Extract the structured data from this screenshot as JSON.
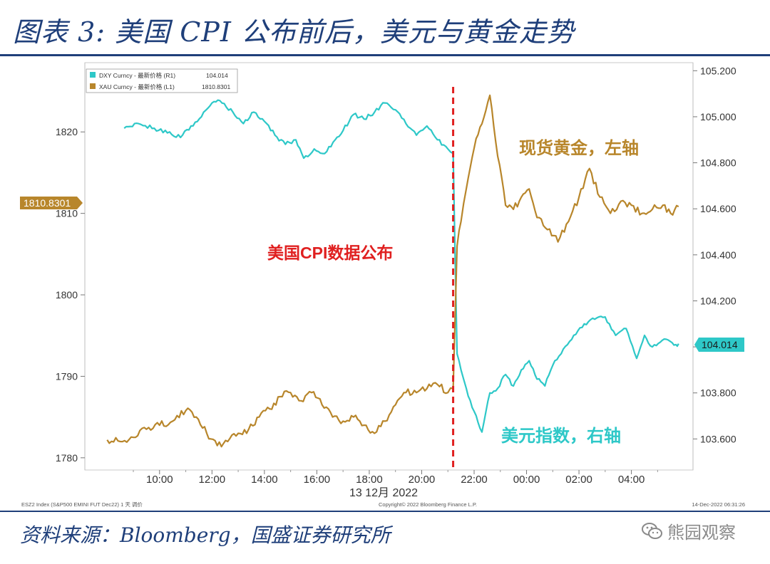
{
  "header": {
    "title": "图表 3: 美国 CPI 公布前后，美元与黄金走势"
  },
  "footer": {
    "source": "资料来源：Bloomberg，国盛证券研究所",
    "watermark": "熊园观察",
    "watermark_icon": "wechat-icon"
  },
  "chart_data": {
    "type": "line",
    "legend": [
      {
        "label": "DXY Curncy - 最新价格 (R1)",
        "value": "104.014",
        "color": "#2ec8c8"
      },
      {
        "label": "XAU Curncy - 最新价格 (L1)",
        "value": "1810.8301",
        "color": "#b8862b"
      }
    ],
    "x_ticks": [
      "10:00",
      "12:00",
      "14:00",
      "16:00",
      "18:00",
      "20:00",
      "22:00",
      "00:00",
      "02:00",
      "04:00"
    ],
    "x_sublabel": "13 12月 2022",
    "left_axis": {
      "ticks": [
        "1780",
        "1790",
        "1800",
        "1810",
        "1820"
      ],
      "range": [
        1778.5,
        1828.5
      ]
    },
    "right_axis": {
      "ticks": [
        "103.600",
        "103.800",
        "104.000",
        "104.200",
        "104.400",
        "104.600",
        "104.800",
        "105.000",
        "105.200"
      ],
      "range": [
        103.465,
        105.235
      ]
    },
    "last_value_labels": {
      "left": "1810.8301",
      "right": "104.014"
    },
    "event_line_time": 21.2,
    "annotations": {
      "event": "美国CPI数据公布",
      "gold": "现货黄金，左轴",
      "usd": "美元指数，右轴"
    },
    "bottom_text": {
      "left": "ESZ2 Index (S&P500 EMINI FUT Dec22) 1 天 调价",
      "center": "Copyright© 2022 Bloomberg Finance L.P.",
      "right": "14-Dec-2022 06:31:26"
    },
    "series": [
      {
        "name": "DXY Curncy",
        "axis": "right",
        "color": "#2ec8c8",
        "x": [
          8.65,
          9.2,
          9.8,
          10.3,
          10.8,
          11.2,
          11.6,
          12.0,
          12.3,
          12.8,
          13.2,
          13.6,
          14.0,
          14.4,
          14.8,
          15.2,
          15.5,
          15.9,
          16.3,
          16.7,
          17.0,
          17.4,
          17.8,
          18.2,
          18.6,
          19.0,
          19.4,
          19.8,
          20.2,
          20.6,
          21.0,
          21.2,
          21.35,
          21.5,
          21.7,
          22.0,
          22.3,
          22.6,
          22.9,
          23.2,
          23.5,
          23.8,
          24.1,
          24.4,
          24.7,
          25.0,
          25.4,
          25.8,
          26.2,
          26.6,
          27.0,
          27.4,
          27.8,
          28.2,
          28.5,
          28.8,
          29.1,
          29.4,
          29.7,
          29.8
        ],
        "values": [
          104.95,
          104.97,
          104.95,
          104.93,
          104.91,
          104.96,
          105.0,
          105.06,
          105.07,
          105.02,
          104.97,
          105.02,
          104.98,
          104.92,
          104.88,
          104.9,
          104.82,
          104.86,
          104.84,
          104.9,
          104.94,
          105.01,
          104.99,
          105.02,
          105.06,
          105.03,
          104.97,
          104.92,
          104.96,
          104.9,
          104.86,
          104.84,
          103.97,
          103.9,
          103.82,
          103.72,
          103.63,
          103.8,
          103.82,
          103.88,
          103.83,
          103.9,
          103.94,
          103.86,
          103.83,
          103.92,
          103.99,
          104.05,
          104.1,
          104.12,
          104.13,
          104.05,
          104.08,
          103.95,
          104.05,
          104.0,
          104.02,
          104.03,
          104.01,
          104.014
        ]
      },
      {
        "name": "XAU Curncy",
        "axis": "left",
        "color": "#b8862b",
        "x": [
          8.0,
          8.5,
          9.0,
          9.5,
          10.0,
          10.5,
          11.0,
          11.4,
          11.8,
          12.2,
          12.6,
          13.0,
          13.4,
          13.8,
          14.2,
          14.6,
          15.0,
          15.4,
          15.8,
          16.2,
          16.6,
          17.0,
          17.4,
          17.8,
          18.2,
          18.6,
          19.0,
          19.4,
          19.8,
          20.2,
          20.6,
          21.0,
          21.2,
          21.35,
          21.5,
          21.7,
          22.0,
          22.3,
          22.6,
          22.9,
          23.2,
          23.5,
          23.8,
          24.1,
          24.4,
          24.8,
          25.2,
          25.6,
          26.0,
          26.4,
          26.8,
          27.2,
          27.6,
          28.0,
          28.4,
          28.8,
          29.2,
          29.5,
          29.8
        ],
        "values": [
          1782.2,
          1782.0,
          1782.5,
          1783.5,
          1784.0,
          1784.5,
          1785.8,
          1785.0,
          1783.0,
          1781.5,
          1782.0,
          1783.0,
          1783.5,
          1785.0,
          1786.0,
          1787.5,
          1788.0,
          1787.0,
          1788.0,
          1786.5,
          1785.0,
          1784.5,
          1785.0,
          1784.0,
          1783.0,
          1784.5,
          1786.5,
          1788.0,
          1788.0,
          1788.5,
          1789.0,
          1788.0,
          1788.5,
          1806.0,
          1809.0,
          1813.0,
          1818.0,
          1821.0,
          1824.5,
          1817.0,
          1811.0,
          1810.5,
          1812.0,
          1813.0,
          1809.5,
          1808.0,
          1806.5,
          1809.0,
          1812.0,
          1815.5,
          1812.0,
          1810.0,
          1811.5,
          1811.0,
          1810.0,
          1810.5,
          1811.0,
          1810.0,
          1810.8301
        ]
      }
    ]
  }
}
